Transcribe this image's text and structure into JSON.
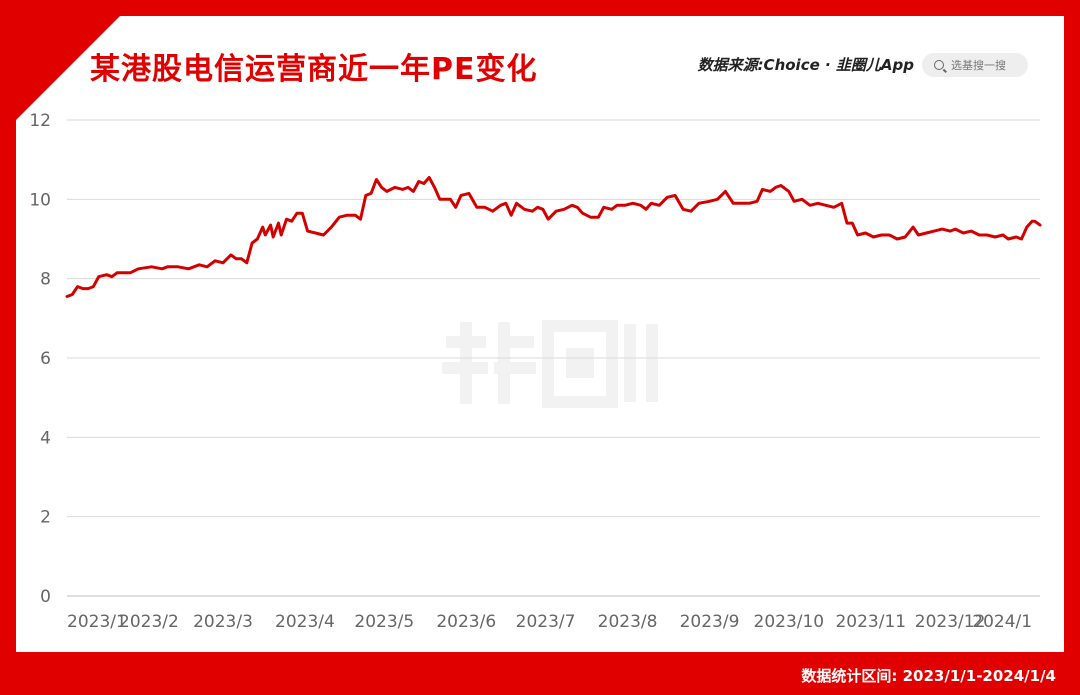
{
  "header": {
    "title": "某港股电信运营商近一年PE变化",
    "source_label": "数据来源:Choice · 韭圈儿App",
    "search_placeholder": "选基搜一搜"
  },
  "footer": {
    "stat_range": "数据统计区间: 2023/1/1-2024/1/4"
  },
  "colors": {
    "brand": "#e00000",
    "line": "#d40000",
    "grid": "#d9d9d9",
    "tick": "#666666"
  },
  "icons": {
    "search": "search-icon",
    "watermark": "watermark-logo-icon"
  },
  "chart_data": {
    "type": "line",
    "title": "某港股电信运营商近一年PE变化",
    "xlabel": "",
    "ylabel": "",
    "ylim": [
      0,
      12
    ],
    "yticks": [
      0,
      2,
      4,
      6,
      8,
      10,
      12
    ],
    "xlim": [
      "2023-01-01",
      "2024-01-04"
    ],
    "x_tick_labels": [
      {
        "label": "2023/1",
        "date": "2023-01-01"
      },
      {
        "label": "2023/2",
        "date": "2023-02-01"
      },
      {
        "label": "2023/3",
        "date": "2023-03-01"
      },
      {
        "label": "2023/4",
        "date": "2023-04-01"
      },
      {
        "label": "2023/5",
        "date": "2023-05-01"
      },
      {
        "label": "2023/6",
        "date": "2023-06-01"
      },
      {
        "label": "2023/7",
        "date": "2023-07-01"
      },
      {
        "label": "2023/8",
        "date": "2023-08-01"
      },
      {
        "label": "2023/9",
        "date": "2023-09-01"
      },
      {
        "label": "2023/10",
        "date": "2023-10-01"
      },
      {
        "label": "2023/11",
        "date": "2023-11-01"
      },
      {
        "label": "2023/12",
        "date": "2023-12-01"
      },
      {
        "label": "2024/1",
        "date": "2024-01-01"
      }
    ],
    "grid": true,
    "legend": "none",
    "series": [
      {
        "color": "#d40000",
        "points": [
          [
            "2023-01-01",
            7.55
          ],
          [
            "2023-01-03",
            7.6
          ],
          [
            "2023-01-05",
            7.8
          ],
          [
            "2023-01-07",
            7.75
          ],
          [
            "2023-01-09",
            7.75
          ],
          [
            "2023-01-11",
            7.8
          ],
          [
            "2023-01-13",
            8.05
          ],
          [
            "2023-01-16",
            8.1
          ],
          [
            "2023-01-18",
            8.05
          ],
          [
            "2023-01-20",
            8.15
          ],
          [
            "2023-01-25",
            8.15
          ],
          [
            "2023-01-28",
            8.25
          ],
          [
            "2023-02-02",
            8.3
          ],
          [
            "2023-02-06",
            8.25
          ],
          [
            "2023-02-08",
            8.3
          ],
          [
            "2023-02-12",
            8.3
          ],
          [
            "2023-02-16",
            8.25
          ],
          [
            "2023-02-20",
            8.35
          ],
          [
            "2023-02-23",
            8.3
          ],
          [
            "2023-02-26",
            8.45
          ],
          [
            "2023-03-01",
            8.4
          ],
          [
            "2023-03-04",
            8.6
          ],
          [
            "2023-03-06",
            8.5
          ],
          [
            "2023-03-08",
            8.5
          ],
          [
            "2023-03-10",
            8.4
          ],
          [
            "2023-03-12",
            8.9
          ],
          [
            "2023-03-14",
            9.0
          ],
          [
            "2023-03-16",
            9.3
          ],
          [
            "2023-03-17",
            9.1
          ],
          [
            "2023-03-19",
            9.35
          ],
          [
            "2023-03-20",
            9.05
          ],
          [
            "2023-03-22",
            9.4
          ],
          [
            "2023-03-23",
            9.1
          ],
          [
            "2023-03-25",
            9.5
          ],
          [
            "2023-03-27",
            9.45
          ],
          [
            "2023-03-29",
            9.65
          ],
          [
            "2023-03-31",
            9.65
          ],
          [
            "2023-04-02",
            9.2
          ],
          [
            "2023-04-05",
            9.15
          ],
          [
            "2023-04-08",
            9.1
          ],
          [
            "2023-04-11",
            9.3
          ],
          [
            "2023-04-14",
            9.55
          ],
          [
            "2023-04-17",
            9.6
          ],
          [
            "2023-04-20",
            9.6
          ],
          [
            "2023-04-22",
            9.5
          ],
          [
            "2023-04-24",
            10.1
          ],
          [
            "2023-04-26",
            10.15
          ],
          [
            "2023-04-28",
            10.5
          ],
          [
            "2023-04-30",
            10.3
          ],
          [
            "2023-05-02",
            10.2
          ],
          [
            "2023-05-05",
            10.3
          ],
          [
            "2023-05-08",
            10.25
          ],
          [
            "2023-05-10",
            10.3
          ],
          [
            "2023-05-12",
            10.2
          ],
          [
            "2023-05-14",
            10.45
          ],
          [
            "2023-05-16",
            10.4
          ],
          [
            "2023-05-18",
            10.55
          ],
          [
            "2023-05-20",
            10.3
          ],
          [
            "2023-05-22",
            10.0
          ],
          [
            "2023-05-26",
            10.0
          ],
          [
            "2023-05-28",
            9.8
          ],
          [
            "2023-05-30",
            10.1
          ],
          [
            "2023-06-02",
            10.15
          ],
          [
            "2023-06-05",
            9.8
          ],
          [
            "2023-06-08",
            9.8
          ],
          [
            "2023-06-11",
            9.7
          ],
          [
            "2023-06-14",
            9.85
          ],
          [
            "2023-06-16",
            9.9
          ],
          [
            "2023-06-18",
            9.6
          ],
          [
            "2023-06-20",
            9.9
          ],
          [
            "2023-06-23",
            9.75
          ],
          [
            "2023-06-26",
            9.7
          ],
          [
            "2023-06-28",
            9.8
          ],
          [
            "2023-06-30",
            9.75
          ],
          [
            "2023-07-02",
            9.5
          ],
          [
            "2023-07-05",
            9.7
          ],
          [
            "2023-07-08",
            9.75
          ],
          [
            "2023-07-11",
            9.85
          ],
          [
            "2023-07-13",
            9.8
          ],
          [
            "2023-07-15",
            9.65
          ],
          [
            "2023-07-18",
            9.55
          ],
          [
            "2023-07-21",
            9.55
          ],
          [
            "2023-07-23",
            9.8
          ],
          [
            "2023-07-26",
            9.75
          ],
          [
            "2023-07-28",
            9.85
          ],
          [
            "2023-07-31",
            9.85
          ],
          [
            "2023-08-03",
            9.9
          ],
          [
            "2023-08-06",
            9.85
          ],
          [
            "2023-08-08",
            9.75
          ],
          [
            "2023-08-10",
            9.9
          ],
          [
            "2023-08-13",
            9.85
          ],
          [
            "2023-08-16",
            10.05
          ],
          [
            "2023-08-19",
            10.1
          ],
          [
            "2023-08-22",
            9.75
          ],
          [
            "2023-08-25",
            9.7
          ],
          [
            "2023-08-28",
            9.9
          ],
          [
            "2023-09-01",
            9.95
          ],
          [
            "2023-09-04",
            10.0
          ],
          [
            "2023-09-07",
            10.2
          ],
          [
            "2023-09-10",
            9.9
          ],
          [
            "2023-09-13",
            9.9
          ],
          [
            "2023-09-16",
            9.9
          ],
          [
            "2023-09-19",
            9.95
          ],
          [
            "2023-09-21",
            10.25
          ],
          [
            "2023-09-24",
            10.2
          ],
          [
            "2023-09-26",
            10.3
          ],
          [
            "2023-09-28",
            10.35
          ],
          [
            "2023-10-01",
            10.2
          ],
          [
            "2023-10-03",
            9.95
          ],
          [
            "2023-10-06",
            10.0
          ],
          [
            "2023-10-09",
            9.85
          ],
          [
            "2023-10-12",
            9.9
          ],
          [
            "2023-10-15",
            9.85
          ],
          [
            "2023-10-18",
            9.8
          ],
          [
            "2023-10-21",
            9.9
          ],
          [
            "2023-10-23",
            9.4
          ],
          [
            "2023-10-25",
            9.4
          ],
          [
            "2023-10-27",
            9.1
          ],
          [
            "2023-10-30",
            9.15
          ],
          [
            "2023-11-02",
            9.05
          ],
          [
            "2023-11-05",
            9.1
          ],
          [
            "2023-11-08",
            9.1
          ],
          [
            "2023-11-11",
            9.0
          ],
          [
            "2023-11-14",
            9.05
          ],
          [
            "2023-11-17",
            9.3
          ],
          [
            "2023-11-19",
            9.1
          ],
          [
            "2023-11-22",
            9.15
          ],
          [
            "2023-11-25",
            9.2
          ],
          [
            "2023-11-28",
            9.25
          ],
          [
            "2023-12-01",
            9.2
          ],
          [
            "2023-12-03",
            9.25
          ],
          [
            "2023-12-06",
            9.15
          ],
          [
            "2023-12-09",
            9.2
          ],
          [
            "2023-12-12",
            9.1
          ],
          [
            "2023-12-15",
            9.1
          ],
          [
            "2023-12-18",
            9.05
          ],
          [
            "2023-12-21",
            9.1
          ],
          [
            "2023-12-23",
            9.0
          ],
          [
            "2023-12-26",
            9.05
          ],
          [
            "2023-12-28",
            9.0
          ],
          [
            "2023-12-30",
            9.3
          ],
          [
            "2024-01-01",
            9.45
          ],
          [
            "2024-01-02",
            9.45
          ],
          [
            "2024-01-03",
            9.4
          ],
          [
            "2024-01-04",
            9.35
          ]
        ]
      }
    ]
  }
}
